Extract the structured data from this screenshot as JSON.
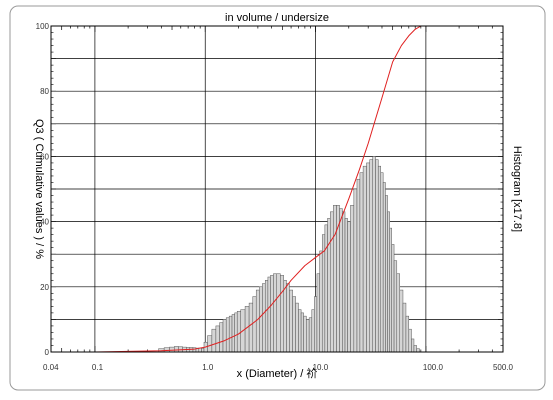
{
  "chart_data": {
    "type": "bar",
    "title": "in volume / undersize",
    "xlabel": "x (Diameter) / 祄",
    "ylabel": "Q3 ( Cumulative values ) / %",
    "y2label": "Histogram [x17.8]",
    "x_scale": "log",
    "xlim": [
      0.04,
      500.0
    ],
    "ylim": [
      0,
      100
    ],
    "x_ticks": [
      "0.04",
      "0.1",
      "1.0",
      "10.0",
      "100.0",
      "500.0"
    ],
    "y_ticks": [
      "0",
      "20",
      "40",
      "60",
      "80",
      "100"
    ],
    "grid": true,
    "colors": {
      "cumulative": "#e02020",
      "histogram_fill": "#d6d6d6",
      "histogram_edge": "#555555",
      "grid": "#000000"
    },
    "histogram": {
      "x": [
        0.4,
        0.45,
        0.5,
        0.55,
        0.6,
        0.65,
        0.7,
        0.75,
        0.8,
        0.85,
        0.9,
        0.95,
        1.0,
        1.1,
        1.2,
        1.3,
        1.4,
        1.5,
        1.6,
        1.7,
        1.8,
        1.9,
        2.0,
        2.2,
        2.4,
        2.6,
        2.8,
        3.0,
        3.2,
        3.4,
        3.6,
        3.8,
        4.0,
        4.3,
        4.6,
        5.0,
        5.3,
        5.6,
        6.0,
        6.4,
        6.8,
        7.2,
        7.6,
        8.0,
        8.5,
        9.0,
        9.5,
        10.0,
        10.6,
        11.2,
        11.8,
        12.5,
        13.2,
        14.0,
        15.0,
        16.0,
        17.0,
        18.0,
        19.0,
        20.0,
        21.5,
        23.0,
        24.5,
        26.0,
        28.0,
        30.0,
        32.0,
        34.0,
        36.0,
        38.0,
        40.0,
        42.0,
        44.0,
        46.0,
        48.0,
        50.0,
        53.0,
        56.0,
        60.0,
        64.0,
        68.0,
        72.0,
        76.0,
        80.0,
        85.0
      ],
      "values": [
        1,
        1.3,
        1.5,
        1.7,
        1.6,
        1.5,
        1.4,
        1.4,
        1.3,
        1.2,
        1.2,
        1.1,
        3,
        5,
        7,
        8,
        9,
        10,
        10.5,
        11,
        11.5,
        12,
        12.5,
        13,
        14,
        15,
        17,
        19,
        20,
        21,
        22,
        23,
        23.5,
        24,
        24,
        23.5,
        22,
        21,
        19,
        17,
        15,
        13,
        12,
        11,
        10,
        10.5,
        13,
        17,
        24,
        31,
        36,
        39,
        41,
        43,
        45,
        45,
        44,
        43,
        41,
        40,
        45,
        50,
        53,
        55,
        57,
        58,
        59,
        60,
        59,
        57,
        55,
        52,
        48,
        43,
        38,
        33,
        28,
        24,
        19,
        15,
        11,
        7,
        4,
        2,
        1
      ]
    },
    "cumulative": {
      "x": [
        0.04,
        0.1,
        0.4,
        0.8,
        1.0,
        1.5,
        2.0,
        3.0,
        4.0,
        5.0,
        6.0,
        8.0,
        10.0,
        12.0,
        15.0,
        20.0,
        25.0,
        30.0,
        40.0,
        50.0,
        60.0,
        70.0,
        80.0,
        90.0,
        100.0,
        500.0
      ],
      "y": [
        0,
        0,
        0.4,
        0.9,
        1.5,
        3.5,
        5.5,
        10,
        14.5,
        18.5,
        22,
        26.5,
        29,
        31,
        36,
        47,
        56,
        64,
        78,
        89,
        94,
        97,
        99,
        100,
        100,
        100
      ]
    }
  }
}
